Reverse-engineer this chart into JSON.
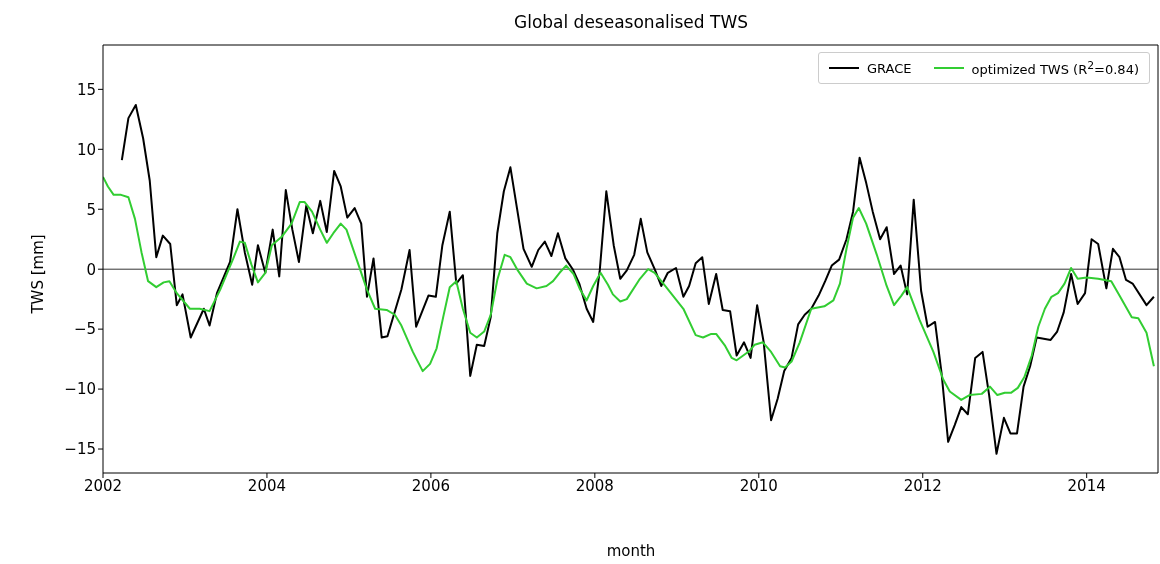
{
  "chart_data": {
    "type": "line",
    "title": "Global deseasonalised TWS",
    "xlabel": "month",
    "ylabel": "TWS [mm]",
    "xlim": [
      2002,
      2014.87
    ],
    "xticks": [
      2002,
      2004,
      2006,
      2008,
      2010,
      2012,
      2014
    ],
    "ylim": [
      -17,
      18.7
    ],
    "yticks": [
      -15,
      -10,
      -5,
      0,
      5,
      10,
      15
    ],
    "grid": false,
    "legend": "top right",
    "marker": "none",
    "line_style": "solid",
    "ref_lines": [
      {
        "axis": "y",
        "value": 0,
        "color": "#000000"
      }
    ],
    "series": [
      {
        "name": "GRACE",
        "color": "#000000",
        "x": [
          2002.23,
          2002.31,
          2002.4,
          2002.49,
          2002.57,
          2002.65,
          2002.73,
          2002.82,
          2002.9,
          2002.97,
          2003.07,
          2003.23,
          2003.3,
          2003.39,
          2003.55,
          2003.64,
          2003.73,
          2003.82,
          2003.89,
          2003.98,
          2004.07,
          2004.15,
          2004.23,
          2004.31,
          2004.39,
          2004.48,
          2004.56,
          2004.65,
          2004.73,
          2004.82,
          2004.9,
          2004.98,
          2005.07,
          2005.15,
          2005.22,
          2005.3,
          2005.4,
          2005.47,
          2005.64,
          2005.74,
          2005.82,
          2005.97,
          2006.06,
          2006.14,
          2006.23,
          2006.31,
          2006.39,
          2006.48,
          2006.56,
          2006.65,
          2006.73,
          2006.81,
          2006.89,
          2006.97,
          2007.05,
          2007.13,
          2007.23,
          2007.31,
          2007.39,
          2007.47,
          2007.55,
          2007.64,
          2007.73,
          2007.81,
          2007.9,
          2007.98,
          2008.06,
          2008.14,
          2008.23,
          2008.31,
          2008.39,
          2008.48,
          2008.56,
          2008.64,
          2008.73,
          2008.81,
          2008.89,
          2008.99,
          2009.08,
          2009.15,
          2009.23,
          2009.31,
          2009.39,
          2009.48,
          2009.56,
          2009.65,
          2009.73,
          2009.82,
          2009.9,
          2009.98,
          2010.06,
          2010.15,
          2010.23,
          2010.31,
          2010.4,
          2010.48,
          2010.56,
          2010.64,
          2010.73,
          2010.81,
          2010.89,
          2010.98,
          2011.07,
          2011.15,
          2011.23,
          2011.31,
          2011.39,
          2011.48,
          2011.56,
          2011.65,
          2011.73,
          2011.81,
          2011.89,
          2011.98,
          2012.06,
          2012.15,
          2012.23,
          2012.31,
          2012.39,
          2012.47,
          2012.55,
          2012.64,
          2012.73,
          2012.81,
          2012.9,
          2012.99,
          2013.07,
          2013.15,
          2013.23,
          2013.31,
          2013.39,
          2013.56,
          2013.64,
          2013.72,
          2013.81,
          2013.89,
          2013.98,
          2014.06,
          2014.14,
          2014.24,
          2014.32,
          2014.4,
          2014.48,
          2014.56,
          2014.73,
          2014.82
        ],
        "values": [
          9.1,
          12.6,
          13.7,
          10.9,
          7.4,
          1.0,
          2.8,
          2.1,
          -3.0,
          -2.1,
          -5.7,
          -3.3,
          -4.7,
          -2.0,
          0.6,
          5.0,
          1.4,
          -1.3,
          2.0,
          -0.3,
          3.3,
          -0.6,
          6.6,
          3.3,
          0.6,
          5.3,
          3.0,
          5.7,
          3.1,
          8.2,
          6.9,
          4.3,
          5.1,
          3.8,
          -2.3,
          0.9,
          -5.7,
          -5.6,
          -1.7,
          1.6,
          -4.8,
          -2.2,
          -2.3,
          2.0,
          4.8,
          -1.2,
          -0.5,
          -8.9,
          -6.3,
          -6.4,
          -4.0,
          3.0,
          6.5,
          8.5,
          5.1,
          1.7,
          0.2,
          1.6,
          2.3,
          1.1,
          3.0,
          0.9,
          0.0,
          -1.2,
          -3.3,
          -4.4,
          -0.1,
          6.5,
          2.0,
          -0.8,
          -0.1,
          1.2,
          4.2,
          1.4,
          0.0,
          -1.4,
          -0.3,
          0.1,
          -2.3,
          -1.4,
          0.5,
          1.0,
          -2.9,
          -0.4,
          -3.4,
          -3.5,
          -7.2,
          -6.1,
          -7.4,
          -3.0,
          -6.1,
          -12.6,
          -10.8,
          -8.5,
          -7.4,
          -4.6,
          -3.8,
          -3.3,
          -2.2,
          -1.0,
          0.3,
          0.8,
          2.5,
          4.8,
          9.3,
          7.2,
          4.8,
          2.5,
          3.5,
          -0.4,
          0.3,
          -2.1,
          5.8,
          -1.8,
          -4.8,
          -4.4,
          -8.7,
          -14.4,
          -13.0,
          -11.5,
          -12.1,
          -7.4,
          -6.9,
          -10.5,
          -15.4,
          -12.4,
          -13.7,
          -13.7,
          -9.8,
          -8.1,
          -5.7,
          -5.9,
          -5.2,
          -3.6,
          -0.4,
          -2.9,
          -2.0,
          2.5,
          2.1,
          -1.6,
          1.7,
          1.0,
          -0.9,
          -1.2,
          -3.0,
          -2.3
        ]
      },
      {
        "name": "optimized TWS (R$^{2}$=0.84)",
        "color": "#32cd32",
        "x": [
          2002.0,
          2002.06,
          2002.13,
          2002.22,
          2002.31,
          2002.39,
          2002.47,
          2002.55,
          2002.65,
          2002.74,
          2002.81,
          2002.9,
          2003.06,
          2003.18,
          2003.3,
          2003.43,
          2003.59,
          2003.67,
          2003.73,
          2003.81,
          2003.89,
          2003.98,
          2004.06,
          2004.18,
          2004.3,
          2004.4,
          2004.46,
          2004.55,
          2004.65,
          2004.73,
          2004.81,
          2004.9,
          2004.97,
          2005.09,
          2005.22,
          2005.32,
          2005.46,
          2005.56,
          2005.64,
          2005.78,
          2005.9,
          2005.99,
          2006.07,
          2006.15,
          2006.23,
          2006.31,
          2006.39,
          2006.48,
          2006.56,
          2006.65,
          2006.73,
          2006.81,
          2006.9,
          2006.97,
          2007.06,
          2007.17,
          2007.29,
          2007.41,
          2007.49,
          2007.57,
          2007.65,
          2007.74,
          2007.82,
          2007.9,
          2007.98,
          2008.07,
          2008.16,
          2008.22,
          2008.31,
          2008.39,
          2008.55,
          2008.65,
          2008.73,
          2008.87,
          2009.08,
          2009.23,
          2009.32,
          2009.42,
          2009.48,
          2009.59,
          2009.67,
          2009.73,
          2009.81,
          2009.89,
          2009.95,
          2010.05,
          2010.15,
          2010.26,
          2010.32,
          2010.4,
          2010.5,
          2010.64,
          2010.8,
          2010.91,
          2010.99,
          2011.07,
          2011.15,
          2011.22,
          2011.31,
          2011.44,
          2011.56,
          2011.65,
          2011.74,
          2011.81,
          2011.96,
          2012.13,
          2012.25,
          2012.33,
          2012.47,
          2012.57,
          2012.72,
          2012.82,
          2012.91,
          2013.0,
          2013.08,
          2013.16,
          2013.24,
          2013.33,
          2013.41,
          2013.49,
          2013.57,
          2013.65,
          2013.73,
          2013.81,
          2013.89,
          2014.0,
          2014.14,
          2014.3,
          2014.4,
          2014.55,
          2014.63,
          2014.73,
          2014.82
        ],
        "values": [
          7.7,
          6.9,
          6.2,
          6.2,
          6.0,
          4.2,
          1.4,
          -1.0,
          -1.5,
          -1.1,
          -1.0,
          -2.0,
          -3.3,
          -3.3,
          -3.5,
          -1.7,
          0.9,
          2.3,
          2.2,
          0.4,
          -1.1,
          -0.3,
          2.0,
          2.7,
          3.8,
          5.6,
          5.6,
          4.8,
          3.3,
          2.2,
          3.0,
          3.8,
          3.3,
          0.9,
          -1.7,
          -3.3,
          -3.4,
          -3.8,
          -4.7,
          -6.9,
          -8.5,
          -7.9,
          -6.6,
          -4.0,
          -1.5,
          -1.0,
          -3.3,
          -5.3,
          -5.7,
          -5.2,
          -3.8,
          -0.9,
          1.2,
          1.0,
          -0.1,
          -1.2,
          -1.6,
          -1.4,
          -1.0,
          -0.3,
          0.3,
          -0.4,
          -1.7,
          -2.6,
          -1.4,
          -0.3,
          -1.3,
          -2.1,
          -2.7,
          -2.5,
          -0.8,
          0.0,
          -0.3,
          -1.5,
          -3.3,
          -5.5,
          -5.7,
          -5.4,
          -5.4,
          -6.4,
          -7.4,
          -7.6,
          -7.2,
          -6.8,
          -6.3,
          -6.1,
          -6.9,
          -8.1,
          -8.2,
          -7.7,
          -6.1,
          -3.3,
          -3.1,
          -2.6,
          -1.2,
          1.7,
          4.3,
          5.1,
          3.8,
          1.2,
          -1.4,
          -3.0,
          -2.2,
          -1.5,
          -4.2,
          -6.9,
          -9.2,
          -10.2,
          -10.9,
          -10.5,
          -10.4,
          -9.8,
          -10.5,
          -10.3,
          -10.3,
          -9.9,
          -9.0,
          -7.2,
          -4.8,
          -3.3,
          -2.3,
          -2.0,
          -1.2,
          0.1,
          -0.8,
          -0.7,
          -0.8,
          -1.0,
          -2.2,
          -4.0,
          -4.1,
          -5.3,
          -8.1
        ]
      }
    ]
  }
}
